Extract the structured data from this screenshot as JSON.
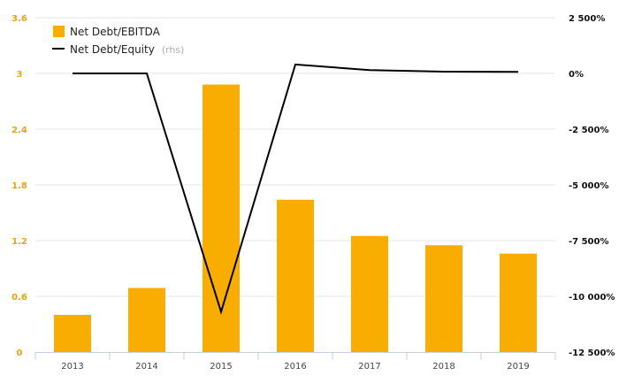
{
  "chart_data": {
    "type": "bar",
    "categories": [
      "2013",
      "2014",
      "2015",
      "2016",
      "2017",
      "2018",
      "2019"
    ],
    "series": [
      {
        "name": "Net Debt/EBITDA",
        "type": "bar",
        "axis": "left",
        "values": [
          0.4,
          0.69,
          2.88,
          1.64,
          1.25,
          1.15,
          1.06
        ]
      },
      {
        "name": "Net Debt/Equity",
        "name_suffix": "(rhs)",
        "type": "line",
        "axis": "right",
        "values": [
          0,
          0,
          -10700,
          400,
          150,
          80,
          70
        ]
      }
    ],
    "left_axis": {
      "ylim": [
        0,
        3.6
      ],
      "ticks": [
        0,
        0.6,
        1.2,
        1.8,
        2.4,
        3,
        3.6
      ],
      "tick_labels": [
        "0",
        "0.6",
        "1.2",
        "1.8",
        "2.4",
        "3",
        "3.6"
      ]
    },
    "right_axis": {
      "ylim": [
        -12500,
        2500
      ],
      "ticks": [
        2500,
        0,
        -2500,
        -5000,
        -7500,
        -10000,
        -12500
      ],
      "tick_labels": [
        "2 500%",
        "0%",
        "-2 500%",
        "-5 000%",
        "-7 500%",
        "-10 000%",
        "-12 500%"
      ]
    },
    "grid": true,
    "legend": "top-left",
    "colors": {
      "bar": "#f9ad00",
      "line": "#000000",
      "grid": "#e6e6e6",
      "left_ticks": "#e8a317",
      "right_ticks": "#111111"
    }
  }
}
